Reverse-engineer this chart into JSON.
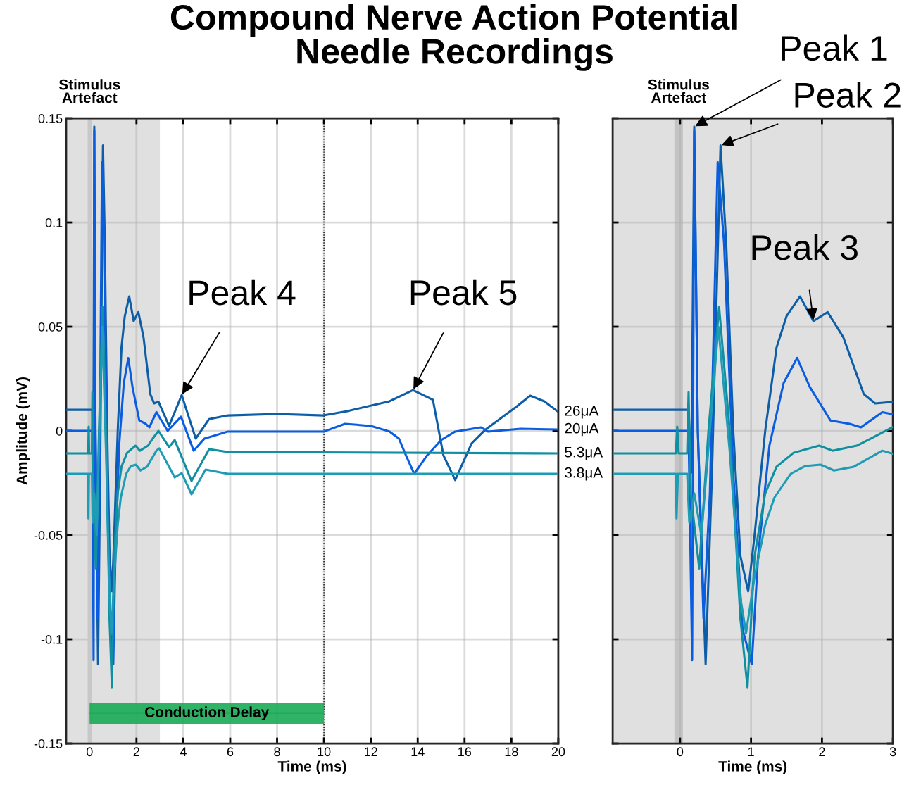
{
  "chart_data": [
    {
      "type": "line",
      "title": "Compound Nerve Action Potential\nNeedle Recordings",
      "xlabel": "Time (ms)",
      "ylabel": "Amplitude (mV)",
      "xlim": [
        -1,
        20
      ],
      "xticks": [
        0,
        2,
        4,
        6,
        8,
        10,
        12,
        14,
        16,
        18,
        20
      ],
      "ylim": [
        -0.15,
        0.15
      ],
      "yticks": [
        -0.15,
        -0.1,
        -0.05,
        0,
        0.05,
        0.1,
        0.15
      ],
      "grid": true,
      "legend": false,
      "marker": "none",
      "line_style": "solid",
      "bands": [
        {
          "axis": "x",
          "from": -1,
          "to": 3,
          "color": "#e0e0e0"
        }
      ],
      "ref_lines": [
        {
          "axis": "x",
          "value": 0,
          "label": "Stimulus\nArtefact",
          "color": "#c8c8c8"
        },
        {
          "axis": "x",
          "value": 10,
          "color": "#000000",
          "line_style": "dotted"
        }
      ],
      "annotations": [
        {
          "text": "Peak 4",
          "x": 3.93,
          "y": 0.0172
        },
        {
          "text": "Peak 5",
          "x": 13.8,
          "y": 0.0196
        }
      ],
      "series": [
        {
          "name": "Conduction Delay",
          "color": "#1aab55",
          "x": [
            0,
            10
          ],
          "values": [
            -0.1355,
            -0.1355
          ],
          "lower": [
            -0.1405,
            -0.1405
          ],
          "upper": [
            -0.1304,
            -0.1304
          ]
        },
        {
          "name": "26μA",
          "color": "#0d5ea6",
          "x": [
            -1,
            0.12,
            0.16,
            0.2,
            0.25,
            0.36,
            0.45,
            0.57,
            0.65,
            0.75,
            0.85,
            0.96,
            1.05,
            1.2,
            1.36,
            1.5,
            1.69,
            1.88,
            2.08,
            2.3,
            2.59,
            2.75,
            2.94,
            3.39,
            3.93,
            4.53,
            5.1,
            5.9,
            8,
            9.98,
            11,
            12.8,
            13.8,
            14.65,
            15.1,
            15.6,
            16.3,
            16.9,
            18.2,
            18.8,
            19.4,
            20
          ],
          "values": [
            0.0101,
            0.0101,
            -0.02,
            0.146,
            0.0,
            -0.112,
            -0.02,
            0.137,
            0.09,
            0.0,
            -0.06,
            -0.077,
            -0.05,
            0.0,
            0.04,
            0.055,
            0.0645,
            0.0527,
            0.057,
            0.045,
            0.0176,
            0.0132,
            0.014,
            0.0024,
            0.0172,
            -0.0037,
            0.0057,
            0.0074,
            0.0081,
            0.0074,
            0.0095,
            0.0142,
            0.0196,
            0.0149,
            -0.0118,
            -0.0236,
            -0.006,
            0.0007,
            0.0115,
            0.0169,
            0.0142,
            0.0091
          ]
        },
        {
          "name": "20μA",
          "color": "#0a5de0",
          "x": [
            -1,
            0.12,
            0.17,
            0.2,
            0.25,
            0.33,
            0.42,
            0.53,
            0.62,
            0.75,
            0.88,
            1.01,
            1.1,
            1.26,
            1.46,
            1.65,
            1.83,
            2.12,
            2.39,
            2.55,
            2.85,
            3.33,
            3.9,
            4.44,
            4.9,
            5.9,
            10,
            10.9,
            12,
            12.8,
            13.2,
            13.5,
            13.85,
            14.4,
            15.0,
            15.6,
            16.7,
            17.0,
            18.4,
            20
          ],
          "values": [
            0,
            0,
            -0.11,
            0.144,
            0.0,
            -0.09,
            -0.03,
            0.129,
            0.09,
            -0.02,
            -0.095,
            -0.112,
            -0.06,
            -0.007,
            0.023,
            0.035,
            0.021,
            0.005,
            0.0034,
            0.0017,
            0.009,
            0.0,
            0.0068,
            -0.0095,
            -0.0037,
            -0.0003,
            -0.0003,
            0.0034,
            0.0024,
            -0.0003,
            -0.0037,
            -0.0118,
            -0.0206,
            -0.0118,
            -0.0044,
            -0.0003,
            0.0017,
            -0.0003,
            0.001,
            0.0007
          ]
        },
        {
          "name": "5.3μA",
          "color": "#0f8fa0",
          "x": [
            -1,
            -0.06,
            -0.04,
            -0.02,
            0.1,
            0.12,
            0.15,
            0.27,
            0.4,
            0.55,
            0.7,
            0.85,
            0.95,
            1.05,
            1.2,
            1.36,
            1.6,
            1.96,
            2.15,
            2.49,
            2.69,
            2.94,
            3.39,
            3.63,
            4.35,
            5.1,
            5.9,
            20
          ],
          "values": [
            -0.0108,
            -0.0108,
            0.002,
            -0.0108,
            -0.0108,
            0.0186,
            -0.03,
            -0.066,
            0.0,
            0.0595,
            0.0,
            -0.09,
            -0.123,
            -0.06,
            -0.03,
            -0.0172,
            -0.0105,
            -0.0071,
            -0.0095,
            -0.0071,
            -0.0037,
            0.0,
            -0.0078,
            -0.0044,
            -0.024,
            -0.0088,
            -0.0101,
            -0.0108
          ]
        },
        {
          "name": "3.8μA",
          "color": "#1e9bb5",
          "x": [
            -1,
            -0.06,
            -0.05,
            -0.03,
            0.1,
            0.13,
            0.2,
            0.3,
            0.42,
            0.54,
            0.7,
            0.85,
            0.93,
            1.05,
            1.2,
            1.33,
            1.56,
            1.76,
            1.98,
            2.17,
            2.45,
            2.85,
            2.97,
            3.63,
            3.93,
            4.35,
            4.95,
            5.9,
            20
          ],
          "values": [
            -0.0206,
            -0.0206,
            -0.042,
            -0.0206,
            -0.0206,
            -0.044,
            -0.03,
            -0.05,
            0.0,
            0.05,
            -0.01,
            -0.08,
            -0.097,
            -0.07,
            -0.045,
            -0.032,
            -0.0206,
            -0.0169,
            -0.0162,
            -0.019,
            -0.0172,
            -0.0095,
            -0.0084,
            -0.0223,
            -0.0203,
            -0.0304,
            -0.0186,
            -0.0206,
            -0.0206
          ]
        }
      ]
    },
    {
      "type": "line",
      "xlabel": "Time (ms)",
      "xlim": [
        -0.95,
        3
      ],
      "xticks": [
        0,
        1,
        2,
        3
      ],
      "ylim": [
        -0.15,
        0.15
      ],
      "yticks": [
        -0.15,
        -0.1,
        -0.05,
        0,
        0.05,
        0.1,
        0.15
      ],
      "tick_labels": "x",
      "grid": true,
      "legend": false,
      "marker": "none",
      "line_style": "solid",
      "bands": [
        {
          "axis": "x",
          "from": -0.95,
          "to": 3,
          "color": "#e0e0e0"
        },
        {
          "axis": "x",
          "from": -0.08,
          "to": 0.04,
          "label": "Stimulus\nArtefact",
          "color": "#c4c4c4"
        }
      ],
      "annotations": [
        {
          "text": "Peak 1",
          "x": 0.2,
          "y": 0.146
        },
        {
          "text": "Peak 2",
          "x": 0.57,
          "y": 0.137
        },
        {
          "text": "Peak 3",
          "x": 1.88,
          "y": 0.0527
        }
      ],
      "series": [
        {
          "color": "#0d5ea6",
          "x": [
            -0.95,
            0.12,
            0.16,
            0.2,
            0.25,
            0.36,
            0.45,
            0.57,
            0.65,
            0.75,
            0.85,
            0.96,
            1.05,
            1.2,
            1.36,
            1.5,
            1.69,
            1.88,
            2.08,
            2.3,
            2.59,
            2.75,
            3.0
          ],
          "values": [
            0.0101,
            0.0101,
            -0.02,
            0.146,
            0.0,
            -0.112,
            -0.02,
            0.137,
            0.09,
            0.0,
            -0.06,
            -0.077,
            -0.05,
            0.0,
            0.04,
            0.055,
            0.0645,
            0.0527,
            0.057,
            0.045,
            0.0176,
            0.0132,
            0.0139
          ]
        },
        {
          "color": "#0a5de0",
          "x": [
            -0.95,
            0.12,
            0.17,
            0.2,
            0.25,
            0.33,
            0.42,
            0.53,
            0.62,
            0.75,
            0.88,
            1.01,
            1.1,
            1.26,
            1.46,
            1.65,
            1.83,
            2.12,
            2.39,
            2.55,
            2.85,
            3.0
          ],
          "values": [
            0,
            0,
            -0.11,
            0.144,
            0.0,
            -0.09,
            -0.03,
            0.129,
            0.09,
            -0.02,
            -0.095,
            -0.112,
            -0.06,
            -0.007,
            0.023,
            0.035,
            0.021,
            0.005,
            0.0034,
            0.0017,
            0.009,
            0.008
          ]
        },
        {
          "color": "#0f8fa0",
          "x": [
            -0.95,
            -0.06,
            -0.04,
            -0.02,
            0.1,
            0.12,
            0.15,
            0.27,
            0.4,
            0.55,
            0.7,
            0.85,
            0.95,
            1.05,
            1.2,
            1.36,
            1.6,
            1.96,
            2.15,
            2.49,
            2.69,
            2.99
          ],
          "values": [
            -0.0108,
            -0.0108,
            0.002,
            -0.0108,
            -0.0108,
            0.0186,
            -0.03,
            -0.066,
            0.0,
            0.0595,
            0.0,
            -0.09,
            -0.123,
            -0.06,
            -0.03,
            -0.0172,
            -0.0105,
            -0.0071,
            -0.0095,
            -0.0071,
            -0.0037,
            0.0017
          ]
        },
        {
          "color": "#1e9bb5",
          "x": [
            -0.95,
            -0.06,
            -0.05,
            -0.03,
            0.1,
            0.13,
            0.2,
            0.3,
            0.42,
            0.54,
            0.7,
            0.85,
            0.93,
            1.05,
            1.2,
            1.33,
            1.56,
            1.76,
            1.98,
            2.17,
            2.45,
            2.85,
            3.0
          ],
          "values": [
            -0.0206,
            -0.0206,
            -0.042,
            -0.0206,
            -0.0206,
            -0.044,
            -0.03,
            -0.05,
            0.0,
            0.05,
            -0.01,
            -0.08,
            -0.097,
            -0.07,
            -0.045,
            -0.032,
            -0.0206,
            -0.0169,
            -0.0162,
            -0.019,
            -0.0172,
            -0.0095,
            -0.011
          ]
        }
      ]
    }
  ]
}
